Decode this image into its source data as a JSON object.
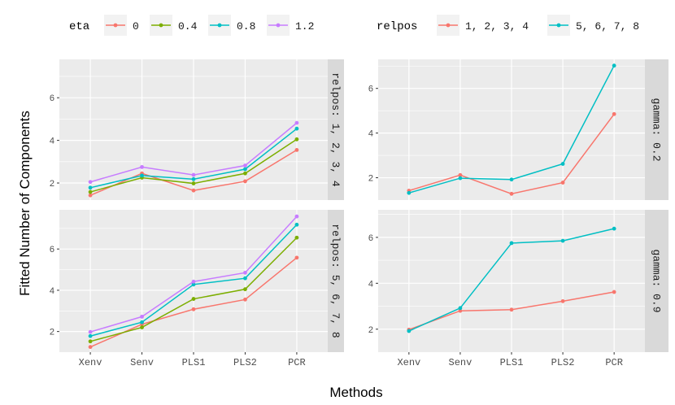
{
  "figure": {
    "xlabel": "Methods",
    "ylabel": "Fitted Number of Components"
  },
  "legends": {
    "left": {
      "title": "eta",
      "items": [
        {
          "label": "0",
          "color": "#F8766D"
        },
        {
          "label": "0.4",
          "color": "#7CAE00"
        },
        {
          "label": "0.8",
          "color": "#00BFC4"
        },
        {
          "label": "1.2",
          "color": "#C77CFF"
        }
      ]
    },
    "right": {
      "title": "relpos",
      "items": [
        {
          "label": "1, 2, 3, 4",
          "color": "#F8766D"
        },
        {
          "label": "5, 6, 7, 8",
          "color": "#00BFC4"
        }
      ]
    }
  },
  "chart_data": [
    {
      "type": "line",
      "panel": "left-top",
      "strip": "relpos: 1, 2, 3, 4",
      "categories": [
        "Xenv",
        "Senv",
        "PLS1",
        "PLS2",
        "PCR"
      ],
      "ylim": [
        1.2,
        7.8
      ],
      "yticks": [
        2,
        4,
        6
      ],
      "grid": true,
      "series": [
        {
          "name": "0",
          "color": "#F8766D",
          "values": [
            1.42,
            2.45,
            1.65,
            2.08,
            3.55
          ]
        },
        {
          "name": "0.4",
          "color": "#7CAE00",
          "values": [
            1.58,
            2.25,
            1.98,
            2.45,
            4.05
          ]
        },
        {
          "name": "0.8",
          "color": "#00BFC4",
          "values": [
            1.78,
            2.35,
            2.18,
            2.65,
            4.55
          ]
        },
        {
          "name": "1.2",
          "color": "#C77CFF",
          "values": [
            2.05,
            2.75,
            2.38,
            2.82,
            4.82
          ]
        }
      ]
    },
    {
      "type": "line",
      "panel": "left-bottom",
      "strip": "relpos: 5, 6, 7, 8",
      "categories": [
        "Xenv",
        "Senv",
        "PLS1",
        "PLS2",
        "PCR"
      ],
      "ylim": [
        1.0,
        7.9
      ],
      "yticks": [
        2,
        4,
        6
      ],
      "grid": true,
      "series": [
        {
          "name": "0",
          "color": "#F8766D",
          "values": [
            1.25,
            2.35,
            3.08,
            3.55,
            5.58
          ]
        },
        {
          "name": "0.4",
          "color": "#7CAE00",
          "values": [
            1.52,
            2.2,
            3.58,
            4.05,
            6.55
          ]
        },
        {
          "name": "0.8",
          "color": "#00BFC4",
          "values": [
            1.78,
            2.45,
            4.28,
            4.58,
            7.18
          ]
        },
        {
          "name": "1.2",
          "color": "#C77CFF",
          "values": [
            1.98,
            2.72,
            4.42,
            4.85,
            7.58
          ]
        }
      ]
    },
    {
      "type": "line",
      "panel": "right-top",
      "strip": "gamma: 0.2",
      "categories": [
        "Xenv",
        "Senv",
        "PLS1",
        "PLS2",
        "PCR"
      ],
      "ylim": [
        1.0,
        7.3
      ],
      "yticks": [
        2,
        4,
        6
      ],
      "grid": true,
      "series": [
        {
          "name": "1, 2, 3, 4",
          "color": "#F8766D",
          "values": [
            1.42,
            2.12,
            1.28,
            1.78,
            4.85
          ]
        },
        {
          "name": "5, 6, 7, 8",
          "color": "#00BFC4",
          "values": [
            1.32,
            1.98,
            1.92,
            2.62,
            7.02
          ]
        }
      ]
    },
    {
      "type": "line",
      "panel": "right-bottom",
      "strip": "gamma: 0.9",
      "categories": [
        "Xenv",
        "Senv",
        "PLS1",
        "PLS2",
        "PCR"
      ],
      "ylim": [
        1.0,
        7.2
      ],
      "yticks": [
        2,
        4,
        6
      ],
      "grid": true,
      "series": [
        {
          "name": "1, 2, 3, 4",
          "color": "#F8766D",
          "values": [
            1.98,
            2.8,
            2.85,
            3.22,
            3.62
          ]
        },
        {
          "name": "5, 6, 7, 8",
          "color": "#00BFC4",
          "values": [
            1.92,
            2.92,
            5.75,
            5.85,
            6.38
          ]
        }
      ]
    }
  ]
}
